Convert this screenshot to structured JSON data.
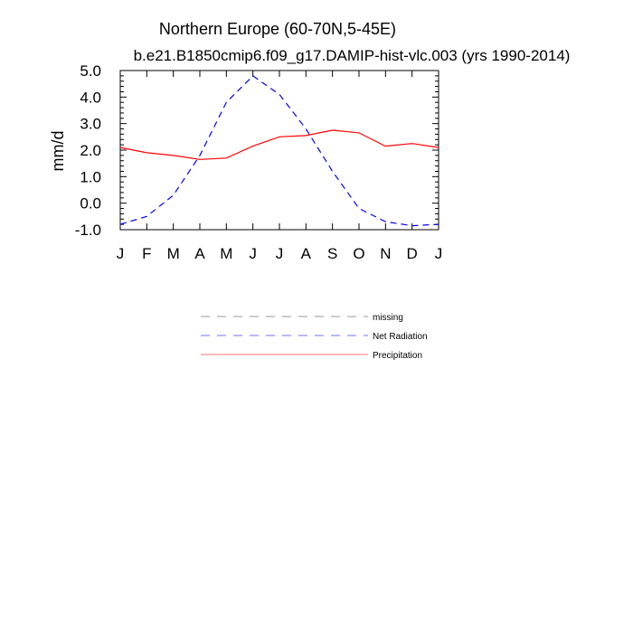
{
  "chart_data": {
    "type": "line",
    "title": "Northern Europe (60-70N,5-45E)",
    "subtitle": "b.e21.B1850cmip6.f09_g17.DAMIP-hist-vlc.003 (yrs 1990-2014)",
    "xlabel": "",
    "ylabel": "mm/d",
    "categories": [
      "J",
      "F",
      "M",
      "A",
      "M",
      "J",
      "J",
      "A",
      "S",
      "O",
      "N",
      "D",
      "J"
    ],
    "ylim": [
      -1.0,
      5.0
    ],
    "yticks": [
      "5.0",
      "4.0",
      "3.0",
      "2.0",
      "1.0",
      "0.0",
      "-1.0"
    ],
    "grid": false,
    "legend_position": "below",
    "legend": [
      {
        "name": "missing",
        "color": "#999999",
        "dash": "dashed"
      },
      {
        "name": "Net Radiation",
        "color": "#0000ff",
        "dash": "dashed"
      },
      {
        "name": "Precipitation",
        "color": "#ff0000",
        "dash": "solid"
      }
    ],
    "series": [
      {
        "name": "Net Radiation",
        "color": "#0000ff",
        "dash": "dashed",
        "values": [
          -0.8,
          -0.5,
          0.3,
          1.8,
          3.8,
          4.8,
          4.1,
          2.8,
          1.2,
          -0.2,
          -0.7,
          -0.85,
          -0.8
        ]
      },
      {
        "name": "Precipitation",
        "color": "#ff0000",
        "dash": "solid",
        "values": [
          2.1,
          1.9,
          1.8,
          1.65,
          1.7,
          2.15,
          2.5,
          2.55,
          2.75,
          2.65,
          2.15,
          2.25,
          2.1
        ]
      }
    ]
  }
}
